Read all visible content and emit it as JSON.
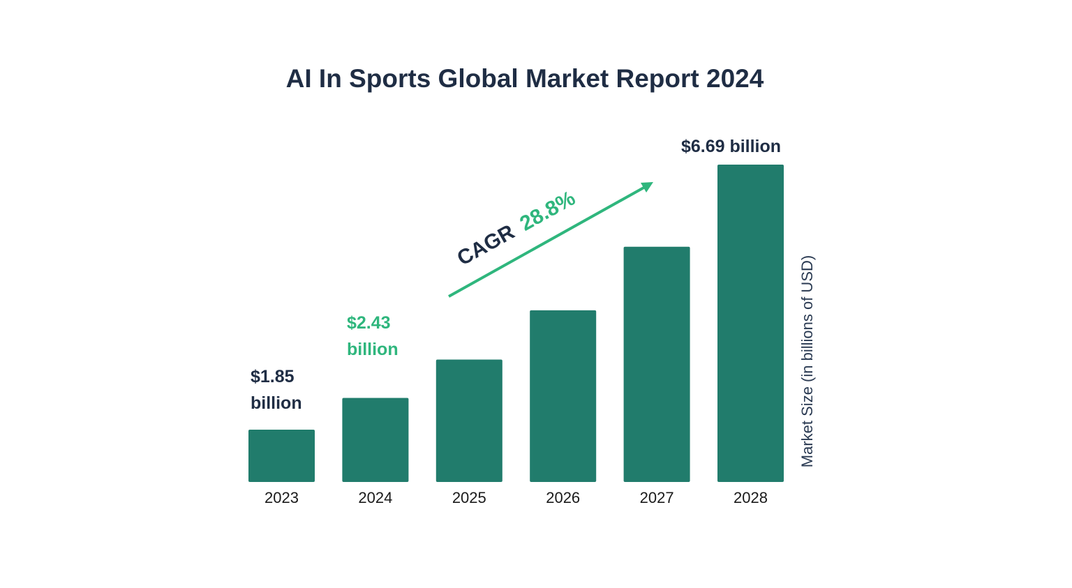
{
  "chart_data": {
    "type": "bar",
    "title": "AI In Sports Global Market Report 2024",
    "categories": [
      "2023",
      "2024",
      "2025",
      "2026",
      "2027",
      "2028"
    ],
    "values": [
      1.85,
      2.43,
      3.13,
      4.03,
      5.19,
      6.69
    ],
    "data_labels": {
      "2023": [
        "$1.85",
        "billion"
      ],
      "2024": [
        "$2.43",
        "billion"
      ],
      "2028": [
        "$6.69 billion"
      ]
    },
    "xlabel": "",
    "ylabel": "Market Size (in billions of USD)",
    "grid": false,
    "annotation": {
      "prefix": "CAGR",
      "value": "28.8%"
    },
    "colors": {
      "bar": "#217c6c",
      "accent": "#2fb67d",
      "text": "#1f2d44"
    }
  }
}
